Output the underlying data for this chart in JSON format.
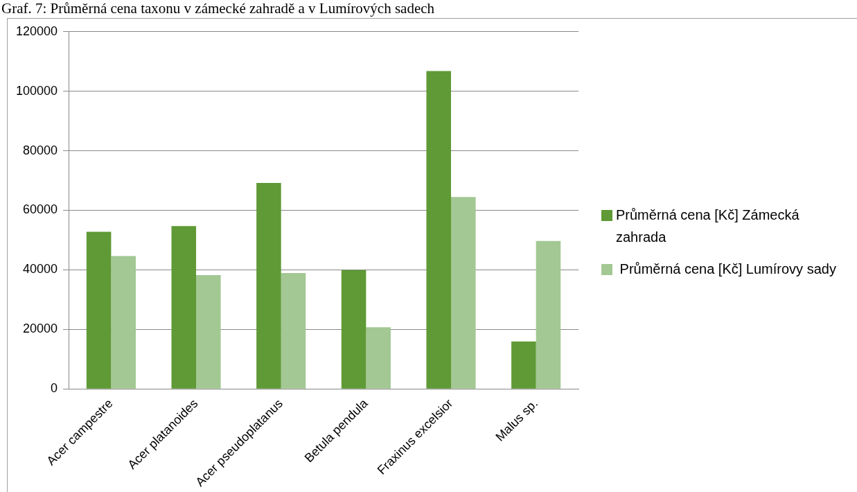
{
  "chart_data": {
    "type": "bar",
    "title": "Graf. 7: Průměrná cena taxonu v zámecké zahradě a v Lumírových sadech",
    "categories": [
      "Acer campestre",
      "Acer platanoides",
      "Acer pseudoplatanus",
      "Betula pendula",
      "Fraxinus excelsior",
      "Malus sp."
    ],
    "series": [
      {
        "name": "Průměrná cena [Kč] Zámecká zahrada",
        "color": "#5f9a36",
        "values": [
          52800,
          54700,
          69200,
          39900,
          106800,
          15900
        ]
      },
      {
        "name": " Průměrná cena [Kč] Lumírovy sady",
        "color": "#a3c893",
        "values": [
          44600,
          38200,
          38900,
          20700,
          64500,
          49700
        ]
      }
    ],
    "ylim": [
      0,
      120000
    ],
    "yticks": [
      0,
      20000,
      40000,
      60000,
      80000,
      100000,
      120000
    ],
    "grid": "y",
    "legend": "right"
  }
}
